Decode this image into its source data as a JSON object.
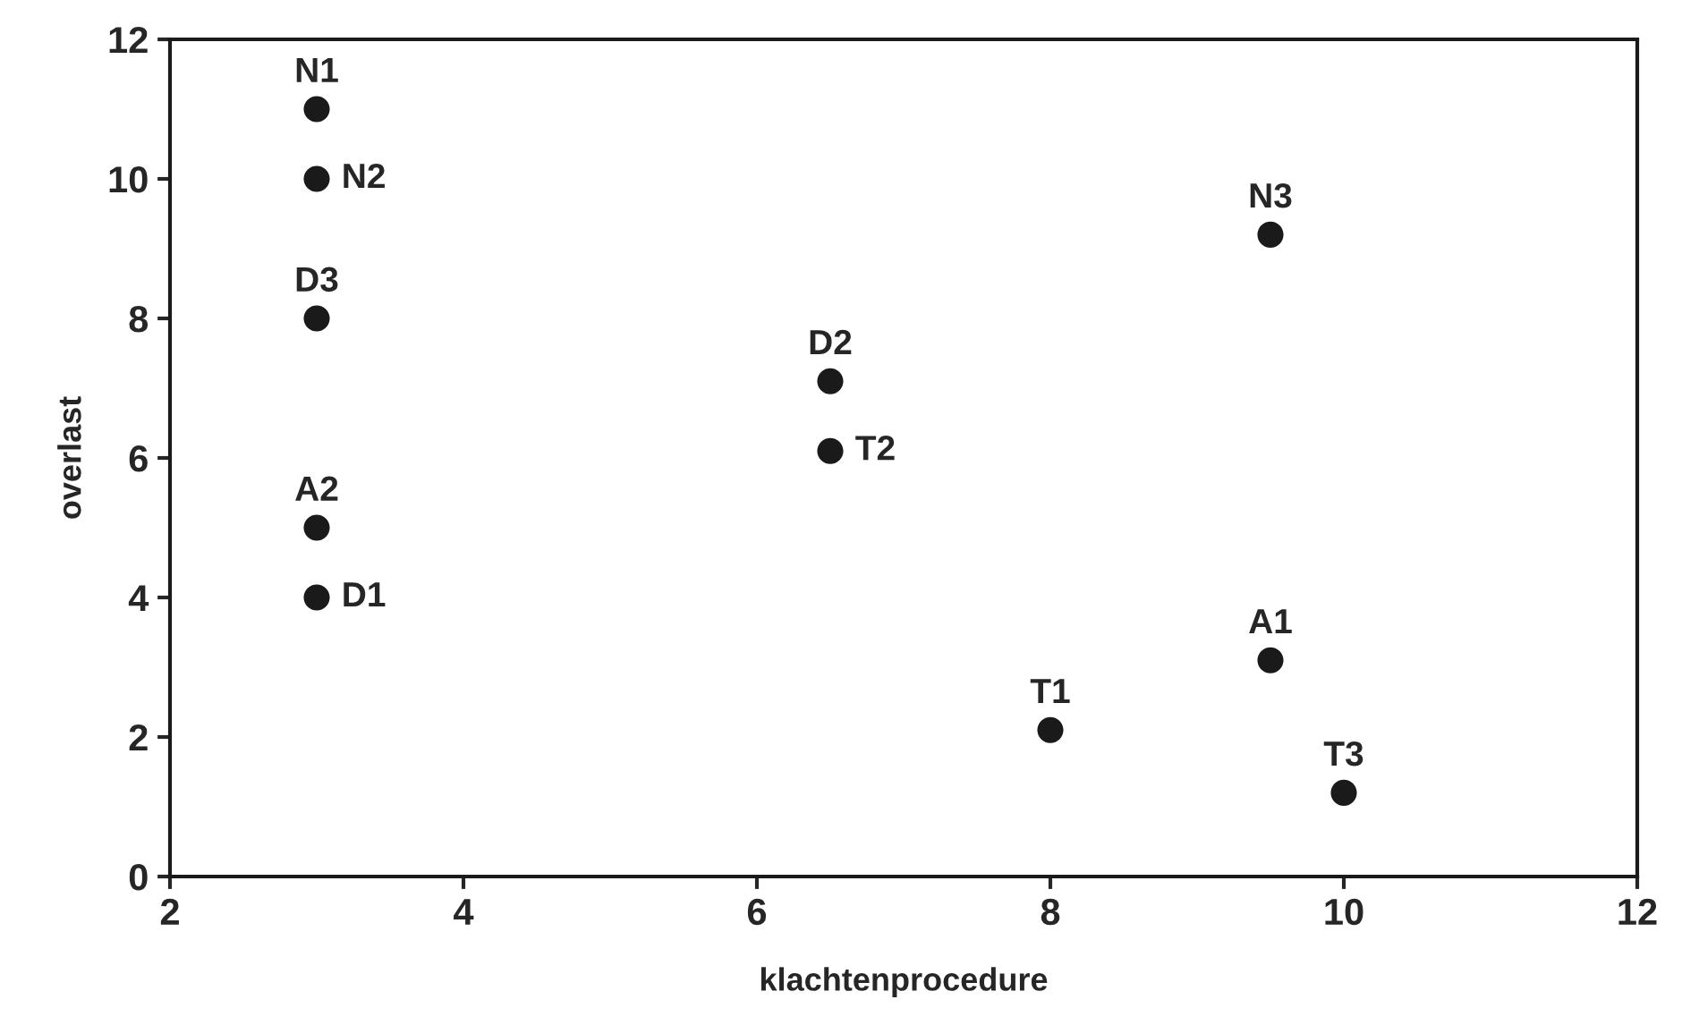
{
  "chart_data": {
    "type": "scatter",
    "xlabel": "klachtenprocedure",
    "ylabel": "overlast",
    "x": [
      3,
      3,
      3,
      3,
      3,
      6.5,
      6.5,
      8,
      9.5,
      9.5,
      10
    ],
    "series": [
      {
        "color": "#1a1a1a",
        "values": [
          11,
          10,
          8,
          5,
          4,
          7.1,
          6.1,
          2.1,
          9.2,
          3.1,
          1.2
        ]
      }
    ],
    "annotations": [
      {
        "text": "N1",
        "x": 3,
        "y": 11
      },
      {
        "text": "N2",
        "x": 3,
        "y": 10
      },
      {
        "text": "D3",
        "x": 3,
        "y": 8
      },
      {
        "text": "A2",
        "x": 3,
        "y": 5
      },
      {
        "text": "D1",
        "x": 3,
        "y": 4
      },
      {
        "text": "D2",
        "x": 6.5,
        "y": 7.1
      },
      {
        "text": "T2",
        "x": 6.5,
        "y": 6.1
      },
      {
        "text": "T1",
        "x": 8,
        "y": 2.1
      },
      {
        "text": "N3",
        "x": 9.5,
        "y": 9.2
      },
      {
        "text": "A1",
        "x": 9.5,
        "y": 3.1
      },
      {
        "text": "T3",
        "x": 10,
        "y": 1.2
      }
    ],
    "xlim": [
      2,
      12
    ],
    "ylim": [
      0,
      12
    ],
    "xticks": [
      2,
      4,
      6,
      8,
      10,
      12
    ],
    "yticks": [
      0,
      2,
      4,
      6,
      8,
      10,
      12
    ],
    "grid": false,
    "legend": false,
    "marker": "circle"
  }
}
